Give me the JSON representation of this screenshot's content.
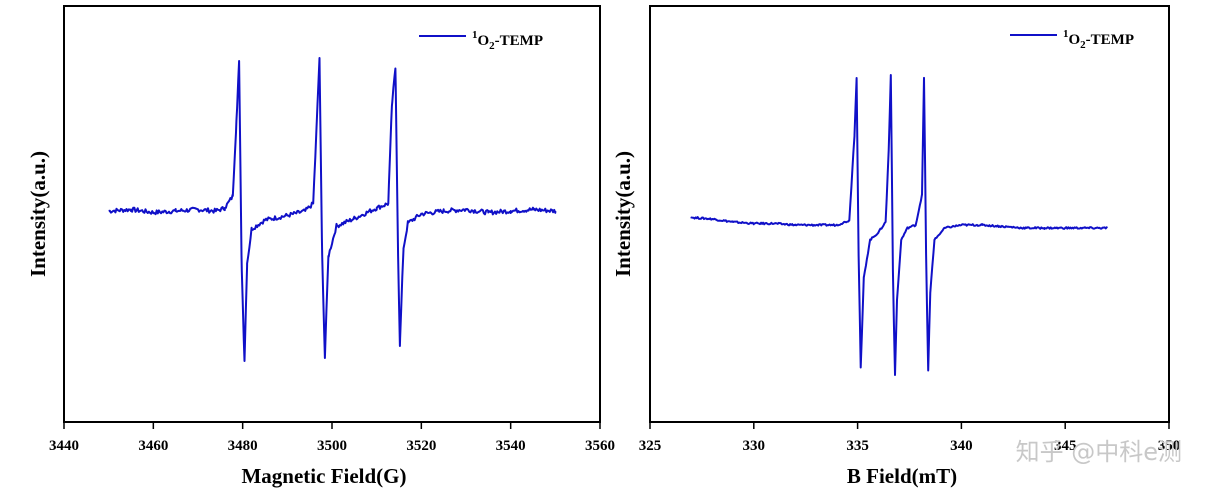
{
  "color_series": "#1010c8",
  "color_watermark": "#c8c8c8",
  "watermark": "知乎 @中科e测",
  "chart_data": [
    {
      "type": "line",
      "id": "left",
      "xlabel": "Magnetic Field(G)",
      "ylabel": "Intensity(a.u.)",
      "xlim": [
        3440,
        3560
      ],
      "ylim": [
        -1.2,
        1.2
      ],
      "xticks": [
        3440,
        3460,
        3480,
        3500,
        3520,
        3540,
        3560
      ],
      "xticklabels": [
        "3440",
        "3460",
        "3480",
        "3500",
        "3520",
        "3540",
        "3560"
      ],
      "legend": {
        "entry": "1O2-TEMP",
        "sup": "1",
        "base": "O",
        "sub": "2",
        "rest": "-TEMP",
        "position": "top-right"
      },
      "series": [
        {
          "name": "1O2-TEMP",
          "x": [
            3450,
            3455,
            3460,
            3465,
            3470,
            3474,
            3476,
            3477.8,
            3478.6,
            3479.2,
            3479.8,
            3480.4,
            3481,
            3482,
            3485,
            3490,
            3494,
            3495.8,
            3496.6,
            3497.2,
            3497.8,
            3498.4,
            3499.2,
            3501,
            3505,
            3510,
            3512.6,
            3513.4,
            3514.2,
            3514.8,
            3515.2,
            3516,
            3517,
            3520,
            3525,
            3530,
            3535,
            3540,
            3545,
            3550
          ],
          "y": [
            0.0,
            0.01,
            -0.01,
            0.0,
            0.01,
            0.0,
            0.02,
            0.1,
            0.6,
            1.0,
            -0.4,
            -1.0,
            -0.35,
            -0.12,
            -0.06,
            -0.03,
            0.0,
            0.05,
            0.6,
            1.02,
            -0.3,
            -0.98,
            -0.3,
            -0.1,
            -0.05,
            0.02,
            0.05,
            0.7,
            0.95,
            -0.3,
            -0.9,
            -0.25,
            -0.08,
            -0.02,
            0.0,
            0.01,
            -0.01,
            0.0,
            0.01,
            0.0
          ]
        }
      ]
    },
    {
      "type": "line",
      "id": "right",
      "xlabel": "B Field(mT)",
      "ylabel": "Intensity(a.u.)",
      "xlim": [
        325,
        350
      ],
      "ylim": [
        -1.2,
        1.2
      ],
      "xticks": [
        325,
        330,
        335,
        340,
        345,
        350
      ],
      "xticklabels": [
        "325",
        "330",
        "335",
        "340",
        "345",
        "350"
      ],
      "legend": {
        "entry": "1O2-TEMP",
        "sup": "1",
        "base": "O",
        "sub": "2",
        "rest": "-TEMP",
        "position": "top-right"
      },
      "series": [
        {
          "name": "1O2-TEMP",
          "x": [
            327,
            328,
            329,
            330,
            331,
            332,
            333,
            334,
            334.6,
            334.85,
            334.95,
            335.05,
            335.15,
            335.3,
            335.6,
            336,
            336.35,
            336.5,
            336.6,
            336.7,
            336.8,
            336.9,
            337.1,
            337.4,
            337.8,
            338.1,
            338.2,
            338.3,
            338.4,
            338.5,
            338.7,
            339.2,
            340,
            341,
            342,
            343,
            344,
            345,
            346,
            347
          ],
          "y": [
            0.05,
            0.04,
            0.02,
            0.01,
            0.01,
            0.0,
            0.0,
            0.0,
            0.03,
            0.6,
            0.98,
            -0.2,
            -0.95,
            -0.35,
            -0.1,
            -0.05,
            0.02,
            0.5,
            1.0,
            -0.3,
            -1.0,
            -0.5,
            -0.1,
            -0.02,
            0.0,
            0.2,
            0.98,
            -0.2,
            -0.97,
            -0.45,
            -0.1,
            -0.02,
            0.0,
            0.0,
            -0.01,
            -0.02,
            -0.02,
            -0.02,
            -0.02,
            -0.02
          ]
        }
      ]
    }
  ]
}
